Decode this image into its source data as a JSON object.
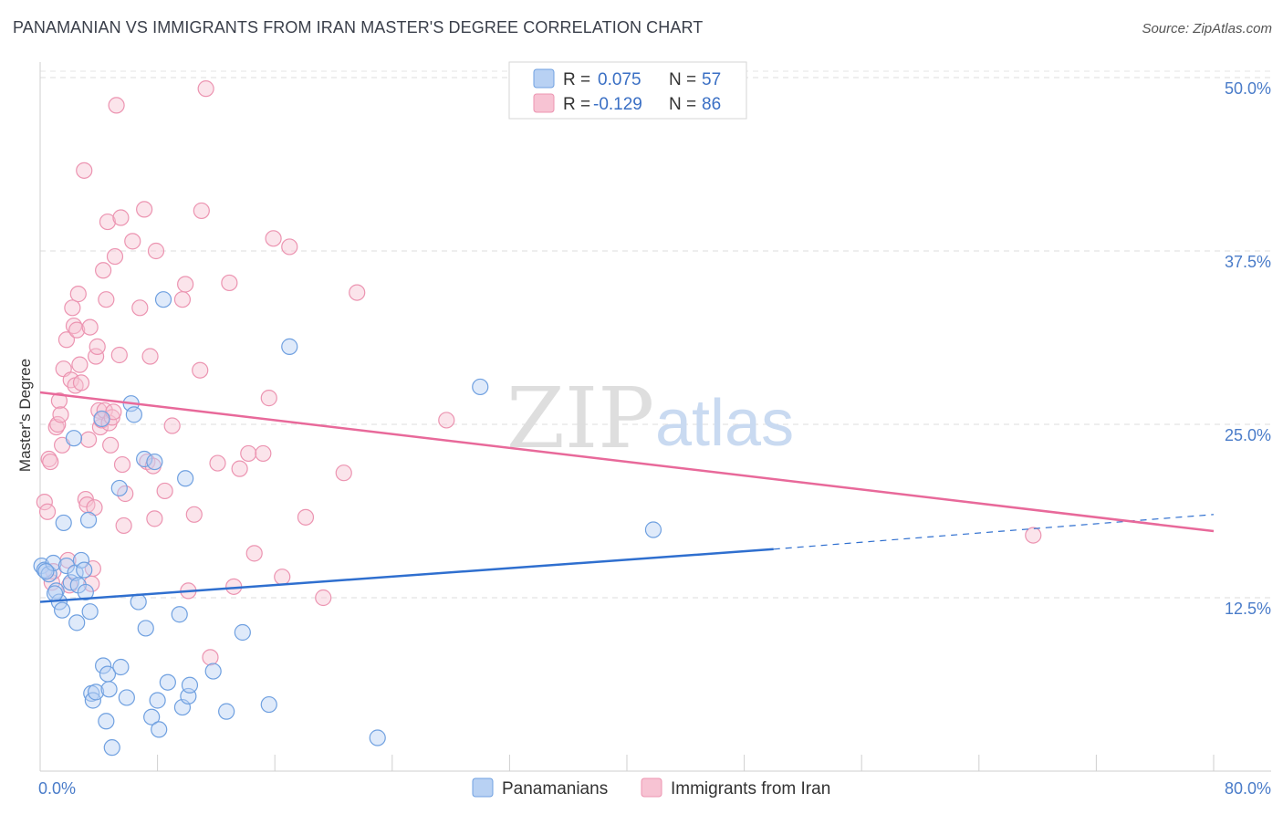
{
  "title": "PANAMANIAN VS IMMIGRANTS FROM IRAN MASTER'S DEGREE CORRELATION CHART",
  "source": "Source: ZipAtlas.com",
  "watermark": {
    "zip": "ZIP",
    "atlas": "atlas"
  },
  "colors": {
    "blue": "#6fa0e0",
    "blue_fill": "#b8d1f3",
    "blue_line": "#2f6fcf",
    "pink": "#ec94b1",
    "pink_fill": "#f7c3d3",
    "pink_line": "#e8699a"
  },
  "chart_data": {
    "type": "scatter",
    "title": "PANAMANIAN VS IMMIGRANTS FROM IRAN MASTER'S DEGREE CORRELATION CHART",
    "xlabel": "",
    "ylabel": "Master's Degree",
    "xlim": [
      0,
      80
    ],
    "ylim": [
      0,
      50
    ],
    "x_tick_labels": [
      "0.0%",
      "80.0%"
    ],
    "y_ticks": [
      12.5,
      25.0,
      37.5,
      50.0
    ],
    "y_tick_labels": [
      "12.5%",
      "25.0%",
      "37.5%",
      "50.0%"
    ],
    "legend": [
      {
        "r_label": "R =",
        "r_value": "0.075",
        "n_label": "N =",
        "n_value": "57"
      },
      {
        "r_label": "R =",
        "r_value": "-0.129",
        "n_label": "N =",
        "n_value": "86"
      }
    ],
    "series": [
      {
        "name": "Panamanians",
        "color": "#6fa0e0",
        "trend": {
          "x": [
            0,
            50
          ],
          "y": [
            12.2,
            16.0
          ],
          "dash_to": [
            80,
            18.5
          ]
        },
        "points": [
          [
            0.1,
            14.8
          ],
          [
            0.3,
            14.5
          ],
          [
            0.6,
            14.2
          ],
          [
            0.9,
            15.0
          ],
          [
            1.1,
            13.0
          ],
          [
            1.3,
            12.2
          ],
          [
            1.5,
            11.6
          ],
          [
            1.6,
            17.9
          ],
          [
            1.8,
            14.8
          ],
          [
            2.1,
            13.6
          ],
          [
            2.3,
            24.0
          ],
          [
            2.4,
            14.3
          ],
          [
            2.5,
            10.7
          ],
          [
            2.6,
            13.4
          ],
          [
            2.8,
            15.2
          ],
          [
            3.0,
            14.5
          ],
          [
            3.1,
            12.9
          ],
          [
            3.3,
            18.1
          ],
          [
            3.4,
            11.5
          ],
          [
            3.5,
            5.6
          ],
          [
            3.6,
            5.1
          ],
          [
            3.8,
            5.7
          ],
          [
            4.2,
            25.4
          ],
          [
            4.3,
            7.6
          ],
          [
            4.5,
            3.6
          ],
          [
            4.6,
            7.0
          ],
          [
            4.7,
            5.9
          ],
          [
            4.9,
            1.7
          ],
          [
            5.4,
            20.4
          ],
          [
            5.5,
            7.5
          ],
          [
            5.9,
            5.3
          ],
          [
            6.2,
            26.5
          ],
          [
            6.4,
            25.7
          ],
          [
            6.7,
            12.2
          ],
          [
            7.1,
            22.5
          ],
          [
            7.2,
            10.3
          ],
          [
            7.6,
            3.9
          ],
          [
            7.8,
            22.3
          ],
          [
            8.0,
            5.1
          ],
          [
            8.1,
            3.0
          ],
          [
            8.4,
            34.0
          ],
          [
            8.7,
            6.4
          ],
          [
            9.5,
            11.3
          ],
          [
            9.7,
            4.6
          ],
          [
            9.9,
            21.1
          ],
          [
            10.1,
            5.4
          ],
          [
            10.2,
            6.2
          ],
          [
            11.8,
            7.2
          ],
          [
            12.7,
            4.3
          ],
          [
            13.8,
            10.0
          ],
          [
            15.6,
            4.8
          ],
          [
            17.0,
            30.6
          ],
          [
            23.0,
            2.4
          ],
          [
            30.0,
            27.7
          ],
          [
            41.8,
            17.4
          ],
          [
            0.4,
            14.4
          ],
          [
            1.0,
            12.8
          ]
        ]
      },
      {
        "name": "Immigrants from Iran",
        "color": "#ec94b1",
        "trend": {
          "x": [
            0,
            80
          ],
          "y": [
            27.3,
            17.3
          ]
        },
        "points": [
          [
            0.3,
            19.4
          ],
          [
            0.5,
            18.7
          ],
          [
            0.6,
            22.5
          ],
          [
            0.7,
            22.3
          ],
          [
            0.8,
            13.6
          ],
          [
            0.9,
            14.4
          ],
          [
            1.1,
            24.8
          ],
          [
            1.2,
            25.0
          ],
          [
            1.3,
            26.7
          ],
          [
            1.4,
            25.7
          ],
          [
            1.5,
            23.5
          ],
          [
            1.6,
            29.0
          ],
          [
            1.8,
            31.1
          ],
          [
            1.9,
            15.2
          ],
          [
            2.0,
            13.4
          ],
          [
            2.1,
            28.2
          ],
          [
            2.2,
            33.4
          ],
          [
            2.3,
            32.1
          ],
          [
            2.4,
            27.8
          ],
          [
            2.5,
            31.8
          ],
          [
            2.6,
            34.4
          ],
          [
            2.7,
            29.3
          ],
          [
            2.8,
            28.0
          ],
          [
            3.0,
            43.3
          ],
          [
            3.1,
            19.6
          ],
          [
            3.2,
            19.2
          ],
          [
            3.3,
            23.9
          ],
          [
            3.4,
            32.0
          ],
          [
            3.5,
            13.5
          ],
          [
            3.6,
            14.6
          ],
          [
            3.7,
            19.0
          ],
          [
            3.8,
            29.9
          ],
          [
            3.9,
            30.6
          ],
          [
            4.0,
            26.0
          ],
          [
            4.1,
            24.8
          ],
          [
            4.2,
            25.3
          ],
          [
            4.3,
            36.1
          ],
          [
            4.4,
            26.0
          ],
          [
            4.5,
            34.0
          ],
          [
            4.6,
            39.6
          ],
          [
            4.7,
            25.1
          ],
          [
            4.8,
            23.5
          ],
          [
            4.9,
            25.5
          ],
          [
            5.0,
            25.9
          ],
          [
            5.1,
            37.1
          ],
          [
            5.2,
            48.0
          ],
          [
            5.4,
            30.0
          ],
          [
            5.5,
            39.9
          ],
          [
            5.6,
            22.1
          ],
          [
            5.7,
            17.7
          ],
          [
            5.8,
            20.0
          ],
          [
            6.3,
            38.2
          ],
          [
            6.8,
            33.4
          ],
          [
            7.1,
            40.5
          ],
          [
            7.3,
            22.3
          ],
          [
            7.5,
            29.9
          ],
          [
            7.7,
            22.0
          ],
          [
            7.8,
            18.2
          ],
          [
            7.9,
            37.5
          ],
          [
            8.5,
            20.2
          ],
          [
            9.0,
            24.9
          ],
          [
            9.7,
            34.0
          ],
          [
            9.9,
            35.1
          ],
          [
            10.1,
            13.0
          ],
          [
            10.5,
            18.5
          ],
          [
            10.9,
            28.9
          ],
          [
            11.0,
            40.4
          ],
          [
            11.3,
            49.2
          ],
          [
            11.6,
            8.2
          ],
          [
            12.1,
            22.2
          ],
          [
            12.9,
            35.2
          ],
          [
            13.2,
            13.3
          ],
          [
            13.6,
            21.8
          ],
          [
            14.2,
            22.9
          ],
          [
            14.6,
            15.7
          ],
          [
            15.2,
            22.9
          ],
          [
            15.6,
            26.9
          ],
          [
            15.9,
            38.4
          ],
          [
            16.5,
            14.0
          ],
          [
            17.0,
            37.8
          ],
          [
            18.1,
            18.3
          ],
          [
            19.3,
            12.5
          ],
          [
            20.7,
            21.5
          ],
          [
            21.6,
            34.5
          ],
          [
            27.7,
            25.3
          ],
          [
            67.7,
            17.0
          ]
        ]
      }
    ]
  }
}
